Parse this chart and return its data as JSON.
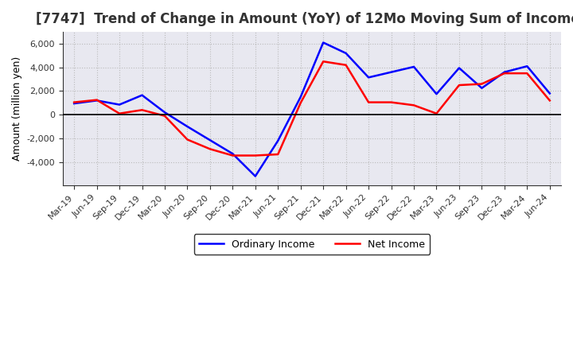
{
  "title": "[7747]  Trend of Change in Amount (YoY) of 12Mo Moving Sum of Incomes",
  "ylabel": "Amount (million yen)",
  "x_labels": [
    "Mar-19",
    "Jun-19",
    "Sep-19",
    "Dec-19",
    "Mar-20",
    "Jun-20",
    "Sep-20",
    "Dec-20",
    "Mar-21",
    "Jun-21",
    "Sep-21",
    "Dec-21",
    "Mar-22",
    "Jun-22",
    "Sep-22",
    "Dec-22",
    "Mar-23",
    "Jun-23",
    "Sep-23",
    "Dec-23",
    "Mar-24",
    "Jun-24"
  ],
  "ordinary_income": [
    950,
    1200,
    850,
    1650,
    200,
    -1000,
    -2150,
    -3300,
    -5200,
    -2200,
    1500,
    6100,
    5200,
    3150,
    3600,
    4050,
    1750,
    3950,
    2250,
    3600,
    4100,
    1800
  ],
  "net_income": [
    1050,
    1250,
    100,
    400,
    -100,
    -2100,
    -2900,
    -3450,
    -3450,
    -3350,
    1000,
    4500,
    4200,
    1050,
    1050,
    800,
    100,
    2500,
    2600,
    3500,
    3500,
    1200
  ],
  "ordinary_color": "#0000ff",
  "net_color": "#ff0000",
  "ylim": [
    -6000,
    7000
  ],
  "yticks": [
    -4000,
    -2000,
    0,
    2000,
    4000,
    6000
  ],
  "background_color": "#ffffff",
  "plot_bg_color": "#e8e8f0",
  "grid_color": "#bbbbbb",
  "line_width": 1.8,
  "title_fontsize": 12,
  "legend_labels": [
    "Ordinary Income",
    "Net Income"
  ]
}
